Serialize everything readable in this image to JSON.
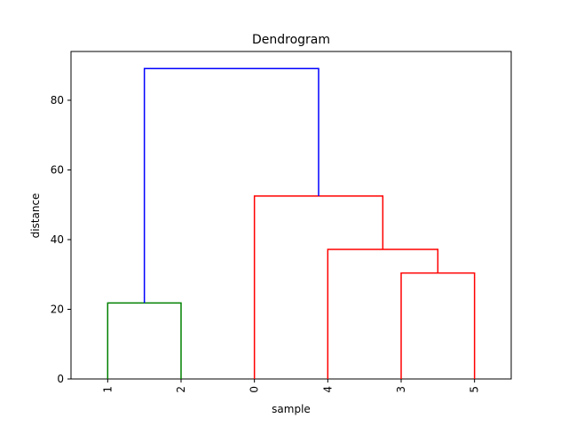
{
  "chart_data": {
    "type": "dendrogram",
    "title": "Dendrogram",
    "xlabel": "sample",
    "ylabel": "distance",
    "ylim": [
      0,
      94
    ],
    "y_ticks": [
      0,
      20,
      40,
      60,
      80
    ],
    "leaves": [
      "1",
      "2",
      "0",
      "4",
      "3",
      "5"
    ],
    "links": [
      {
        "id": "merge-1-2",
        "children": [
          "1",
          "2"
        ],
        "height": 21.8,
        "color": "#008000"
      },
      {
        "id": "merge-3-5",
        "children": [
          "3",
          "5"
        ],
        "height": 30.4,
        "color": "#ff0000"
      },
      {
        "id": "merge-4-35",
        "children": [
          "4",
          "merge-3-5"
        ],
        "height": 37.2,
        "color": "#ff0000"
      },
      {
        "id": "merge-0-435",
        "children": [
          "0",
          "merge-4-35"
        ],
        "height": 52.5,
        "color": "#ff0000"
      },
      {
        "id": "merge-root",
        "children": [
          "merge-1-2",
          "merge-0-435"
        ],
        "height": 89.1,
        "color": "#0000ff"
      }
    ],
    "grid": false
  }
}
